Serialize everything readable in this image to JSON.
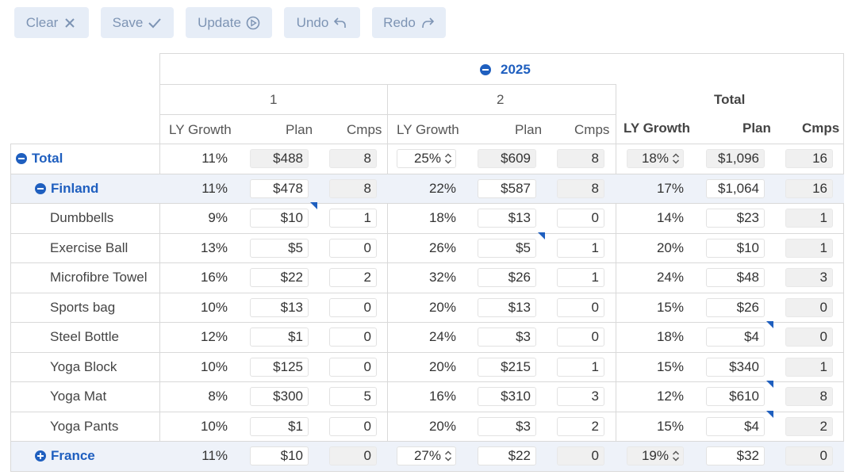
{
  "toolbar": {
    "clear": "Clear",
    "save": "Save",
    "update": "Update",
    "undo": "Undo",
    "redo": "Redo",
    "text_color": "#7d94b4",
    "bg_color": "#e6edf7"
  },
  "header": {
    "year": "2025",
    "period1": "1",
    "period2": "2",
    "total": "Total",
    "col_ly_growth": "LY Growth",
    "col_plan": "Plan",
    "col_cmps": "Cmps"
  },
  "accent_color": "#1f5fbf",
  "rows": [
    {
      "label": "Total",
      "type": "group",
      "expanded": true,
      "p1": {
        "ly": "11%",
        "plan": "$488",
        "cmps": "8"
      },
      "p2": {
        "ly": "25%",
        "plan": "$609",
        "cmps": "8"
      },
      "tot": {
        "ly": "18%",
        "plan": "$1,096",
        "cmps": "16"
      }
    },
    {
      "label": "Finland",
      "type": "group",
      "expanded": true,
      "p1": {
        "ly": "11%",
        "plan": "$478",
        "cmps": "8"
      },
      "p2": {
        "ly": "22%",
        "plan": "$587",
        "cmps": "8"
      },
      "tot": {
        "ly": "17%",
        "plan": "$1,064",
        "cmps": "16"
      }
    },
    {
      "label": "Dumbbells",
      "type": "item",
      "p1": {
        "ly": "9%",
        "plan": "$10",
        "cmps": "1"
      },
      "p2": {
        "ly": "18%",
        "plan": "$13",
        "cmps": "0"
      },
      "tot": {
        "ly": "14%",
        "plan": "$23",
        "cmps": "1"
      }
    },
    {
      "label": "Exercise Ball",
      "type": "item",
      "p1": {
        "ly": "13%",
        "plan": "$5",
        "cmps": "0"
      },
      "p2": {
        "ly": "26%",
        "plan": "$5",
        "cmps": "1"
      },
      "tot": {
        "ly": "20%",
        "plan": "$10",
        "cmps": "1"
      }
    },
    {
      "label": "Microfibre Towel",
      "type": "item",
      "p1": {
        "ly": "16%",
        "plan": "$22",
        "cmps": "2"
      },
      "p2": {
        "ly": "32%",
        "plan": "$26",
        "cmps": "1"
      },
      "tot": {
        "ly": "24%",
        "plan": "$48",
        "cmps": "3"
      }
    },
    {
      "label": "Sports bag",
      "type": "item",
      "p1": {
        "ly": "10%",
        "plan": "$13",
        "cmps": "0"
      },
      "p2": {
        "ly": "20%",
        "plan": "$13",
        "cmps": "0"
      },
      "tot": {
        "ly": "15%",
        "plan": "$26",
        "cmps": "0"
      }
    },
    {
      "label": "Steel Bottle",
      "type": "item",
      "p1": {
        "ly": "12%",
        "plan": "$1",
        "cmps": "0"
      },
      "p2": {
        "ly": "24%",
        "plan": "$3",
        "cmps": "0"
      },
      "tot": {
        "ly": "18%",
        "plan": "$4",
        "cmps": "0"
      }
    },
    {
      "label": "Yoga Block",
      "type": "item",
      "p1": {
        "ly": "10%",
        "plan": "$125",
        "cmps": "0"
      },
      "p2": {
        "ly": "20%",
        "plan": "$215",
        "cmps": "1"
      },
      "tot": {
        "ly": "15%",
        "plan": "$340",
        "cmps": "1"
      }
    },
    {
      "label": "Yoga Mat",
      "type": "item",
      "p1": {
        "ly": "8%",
        "plan": "$300",
        "cmps": "5"
      },
      "p2": {
        "ly": "16%",
        "plan": "$310",
        "cmps": "3"
      },
      "tot": {
        "ly": "12%",
        "plan": "$610",
        "cmps": "8"
      }
    },
    {
      "label": "Yoga Pants",
      "type": "item",
      "p1": {
        "ly": "10%",
        "plan": "$1",
        "cmps": "0"
      },
      "p2": {
        "ly": "20%",
        "plan": "$3",
        "cmps": "2"
      },
      "tot": {
        "ly": "15%",
        "plan": "$4",
        "cmps": "2"
      }
    },
    {
      "label": "France",
      "type": "group",
      "expanded": false,
      "p1": {
        "ly": "11%",
        "plan": "$10",
        "cmps": "0"
      },
      "p2": {
        "ly": "27%",
        "plan": "$22",
        "cmps": "0"
      },
      "tot": {
        "ly": "19%",
        "plan": "$32",
        "cmps": "0"
      }
    }
  ]
}
